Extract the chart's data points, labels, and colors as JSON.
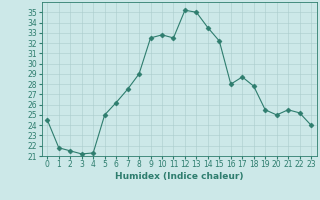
{
  "x": [
    0,
    1,
    2,
    3,
    4,
    5,
    6,
    7,
    8,
    9,
    10,
    11,
    12,
    13,
    14,
    15,
    16,
    17,
    18,
    19,
    20,
    21,
    22,
    23
  ],
  "y": [
    24.5,
    21.8,
    21.5,
    21.2,
    21.3,
    25.0,
    26.2,
    27.5,
    29.0,
    32.5,
    32.8,
    32.5,
    35.2,
    35.0,
    33.5,
    32.2,
    28.0,
    28.7,
    27.8,
    25.5,
    25.0,
    25.5,
    25.2,
    24.0
  ],
  "line_color": "#2e7d6e",
  "marker": "D",
  "marker_size": 2.5,
  "bg_color": "#cce8e8",
  "grid_color": "#aacccc",
  "xlabel": "Humidex (Indice chaleur)",
  "xlim": [
    -0.5,
    23.5
  ],
  "ylim": [
    21,
    36
  ],
  "yticks": [
    21,
    22,
    23,
    24,
    25,
    26,
    27,
    28,
    29,
    30,
    31,
    32,
    33,
    34,
    35
  ],
  "xticks": [
    0,
    1,
    2,
    3,
    4,
    5,
    6,
    7,
    8,
    9,
    10,
    11,
    12,
    13,
    14,
    15,
    16,
    17,
    18,
    19,
    20,
    21,
    22,
    23
  ],
  "label_fontsize": 6.5,
  "tick_fontsize": 5.5
}
